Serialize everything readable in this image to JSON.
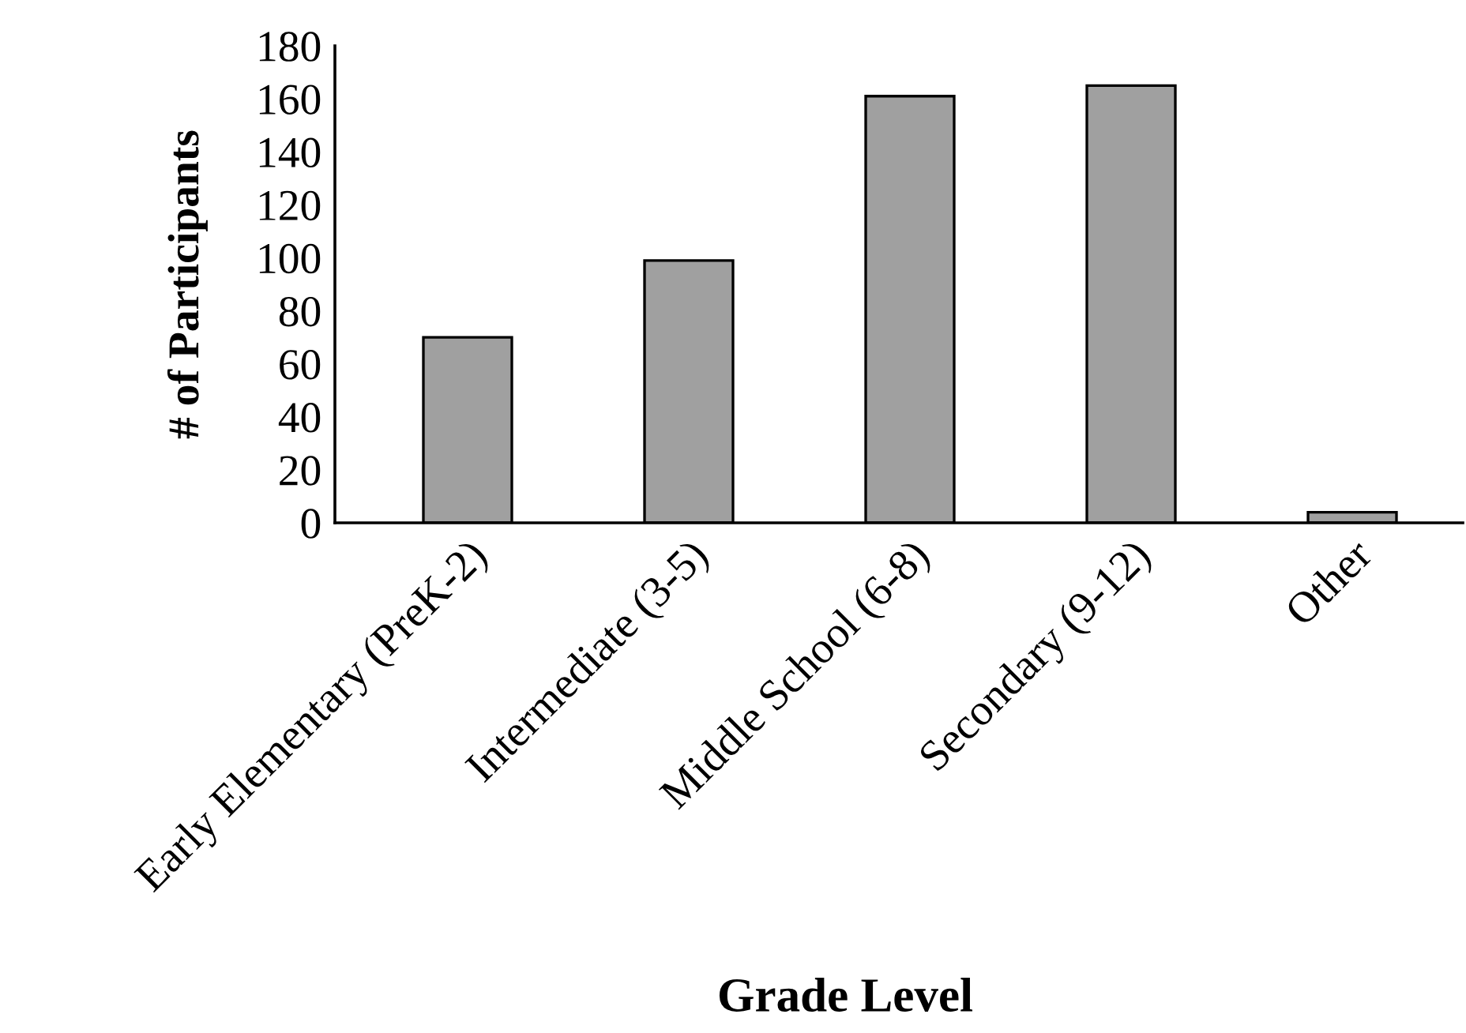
{
  "chart_data": {
    "type": "bar",
    "xlabel": "Grade Level",
    "ylabel": "# of Participants",
    "categories": [
      "Early Elementary (PreK-2)",
      "Intermediate (3-5)",
      "Middle School (6-8)",
      "Secondary (9-12)",
      "Other"
    ],
    "values": [
      70,
      99,
      161,
      165,
      4
    ],
    "color": "#a0a0a0",
    "ylim": [
      0,
      180
    ],
    "yticks": [
      0,
      20,
      40,
      60,
      80,
      100,
      120,
      140,
      160,
      180
    ],
    "grid": false,
    "legend": false
  }
}
